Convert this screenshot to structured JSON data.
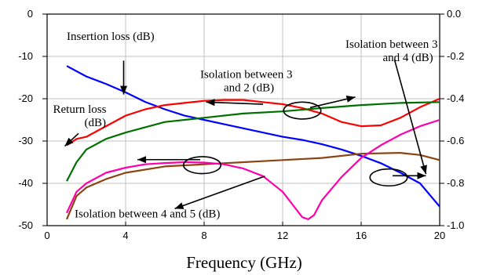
{
  "chart_data": {
    "type": "line",
    "xlabel": "Frequency (GHz)",
    "xlim": [
      0,
      20
    ],
    "x_ticks": [
      "0",
      "4",
      "8",
      "12",
      "16",
      "20"
    ],
    "ylim_left": [
      -50,
      0
    ],
    "y_left_ticks": [
      "-50",
      "-40",
      "-30",
      "-20",
      "-10",
      "0"
    ],
    "ylim_right": [
      -1.0,
      0.0
    ],
    "y_right_ticks": [
      "-1.0",
      "-0.8",
      "-0.6",
      "-0.4",
      "-0.2",
      "0.0"
    ],
    "grid": true,
    "series": [
      {
        "name": "Insertion loss (dB)",
        "axis": "right",
        "color": "#0000ff",
        "x": [
          1,
          2,
          3,
          4,
          5,
          6,
          7,
          8,
          9,
          10,
          11,
          12,
          13,
          14,
          15,
          16,
          17,
          18,
          19,
          20
        ],
        "y": [
          -0.245,
          -0.295,
          -0.33,
          -0.37,
          -0.415,
          -0.45,
          -0.48,
          -0.5,
          -0.52,
          -0.54,
          -0.56,
          -0.58,
          -0.595,
          -0.615,
          -0.64,
          -0.67,
          -0.705,
          -0.75,
          -0.8,
          -0.91
        ]
      },
      {
        "name": "Return loss (dB)",
        "axis": "left",
        "color": "#ff0000",
        "x": [
          1,
          1.5,
          2,
          3,
          4,
          5,
          6,
          7,
          8,
          9,
          10,
          11,
          12,
          13,
          14,
          15,
          16,
          17,
          18,
          19,
          20
        ],
        "y": [
          -31,
          -29.5,
          -29,
          -26.5,
          -24,
          -22.5,
          -21.5,
          -21,
          -20.5,
          -20.3,
          -20.3,
          -20.8,
          -21.3,
          -22.2,
          -23.5,
          -25.5,
          -26.5,
          -26.3,
          -24.5,
          -22,
          -20
        ]
      },
      {
        "name": "Isolation between 3 and 2 (dB)",
        "axis": "left",
        "color": "#007000",
        "x": [
          1,
          1.5,
          2,
          3,
          4,
          6,
          8,
          10,
          12,
          14,
          16,
          18,
          20
        ],
        "y": [
          -39.5,
          -35,
          -32,
          -29.5,
          -28,
          -25.5,
          -24.5,
          -23.5,
          -23,
          -22.2,
          -21.5,
          -21,
          -20.8
        ]
      },
      {
        "name": "Isolation between 3 and 4 (dB)",
        "axis": "left",
        "color": "#8b4513",
        "x": [
          1,
          1.5,
          2,
          3,
          4,
          6,
          8,
          10,
          12,
          14,
          16,
          18,
          19,
          20
        ],
        "y": [
          -48.5,
          -43,
          -41,
          -39,
          -37.5,
          -36,
          -35.5,
          -35,
          -34.5,
          -34,
          -33,
          -32.8,
          -33.3,
          -34.5
        ]
      },
      {
        "name": "Isolation between 4 and 5 (dB)",
        "axis": "left",
        "color": "#ff00aa",
        "x": [
          1,
          1.5,
          2,
          3,
          4,
          5,
          6,
          7,
          8,
          9,
          10,
          11,
          12,
          12.5,
          13,
          13.3,
          13.6,
          14,
          15,
          16,
          17,
          18,
          19,
          20
        ],
        "y": [
          -47,
          -42,
          -40,
          -37.5,
          -36.3,
          -35.5,
          -35.2,
          -35,
          -35.1,
          -35.5,
          -36.5,
          -38.3,
          -42,
          -45,
          -48,
          -48.5,
          -47.5,
          -44,
          -38.5,
          -34,
          -31,
          -28.5,
          -26.5,
          -25
        ]
      }
    ],
    "annotations": [
      {
        "text": "Insertion loss (dB)",
        "x": 1.0,
        "y": -6.1
      },
      {
        "text": "Isolation between 3",
        "x": 15.2,
        "y": -8.0
      },
      {
        "text": "and 4 (dB)",
        "x": 17.1,
        "y": -11.1
      },
      {
        "text": "Isolation between 3",
        "x": 7.8,
        "y": -15.1
      },
      {
        "text": "and 2 (dB)",
        "x": 9.0,
        "y": -18.2
      },
      {
        "text": "Return loss",
        "x": 0.3,
        "y": -23.3
      },
      {
        "text": "(dB)",
        "x": 1.9,
        "y": -26.5
      },
      {
        "text": "Isolation between 4 and 5 (dB)",
        "x": 1.4,
        "y": -48.1
      }
    ],
    "arrows": [
      {
        "from": [
          3.9,
          -11
        ],
        "to": [
          3.9,
          -19
        ]
      },
      {
        "from": [
          1.6,
          -28.2
        ],
        "to": [
          0.9,
          -31.2
        ]
      },
      {
        "from": [
          11.0,
          -21.3
        ],
        "to": [
          8.1,
          -20.8
        ]
      },
      {
        "from": [
          13.4,
          -22.1
        ],
        "to": [
          15.7,
          -19.6
        ]
      },
      {
        "from": [
          7.8,
          -34.4
        ],
        "to": [
          4.6,
          -34.4
        ]
      },
      {
        "from": [
          17.7,
          -10.8
        ],
        "to": [
          19.3,
          -37.8
        ]
      },
      {
        "from": [
          17.6,
          -38.2
        ],
        "to": [
          19.3,
          -38.2
        ]
      },
      {
        "from": [
          11.1,
          -38.3
        ],
        "to": [
          6.5,
          -46.0
        ]
      }
    ],
    "ellipses": [
      {
        "cx": 13.0,
        "cy": -22.8,
        "rx": 0.95,
        "ry": 2.0
      },
      {
        "cx": 7.9,
        "cy": -35.7,
        "rx": 0.95,
        "ry": 2.0
      },
      {
        "cx": 17.4,
        "cy": -38.6,
        "rx": 0.95,
        "ry": 2.0
      }
    ]
  }
}
